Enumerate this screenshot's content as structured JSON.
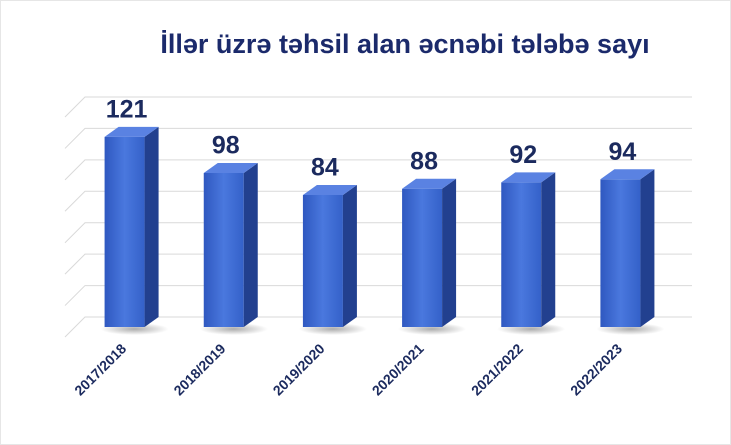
{
  "chart_data": {
    "type": "bar3d",
    "title": "İllər üzrə təhsil alan əcnəbi tələbə sayı",
    "categories": [
      "2017/2018",
      "2018/2019",
      "2019/2020",
      "2020/2021",
      "2021/2022",
      "2022/2023"
    ],
    "values": [
      121,
      98,
      84,
      88,
      92,
      94
    ],
    "color": "#3d67d1",
    "ylim": [
      0,
      140
    ],
    "yticks": [
      0,
      20,
      40,
      60,
      80,
      100,
      120,
      140
    ],
    "grid": true
  }
}
